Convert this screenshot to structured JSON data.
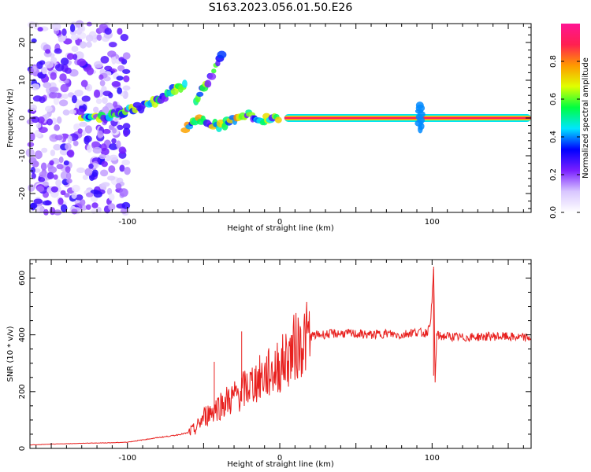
{
  "title": "S163.2023.056.01.50.E26",
  "chart_data": [
    {
      "type": "heatmap",
      "xlabel": "Height of straight line (km)",
      "ylabel": "Frequency (Hz)",
      "xlim": [
        -164,
        165
      ],
      "ylim": [
        -25,
        25
      ],
      "x_ticks": [
        -100,
        0,
        100
      ],
      "y_ticks": [
        -20,
        -10,
        0,
        10,
        20
      ],
      "colorbar": {
        "label": "Normalized spectral amplitude",
        "range": [
          0,
          1
        ],
        "ticks": [
          0.0,
          0.2,
          0.4,
          0.6,
          0.8
        ],
        "colormap": [
          "#ffffff",
          "#d8c6ff",
          "#7a1fff",
          "#0000ff",
          "#00e5ff",
          "#00ff40",
          "#e0ff00",
          "#ff9900",
          "#ff2050",
          "#ff1493"
        ]
      },
      "features": [
        {
          "name": "noise",
          "x_range": [
            -164,
            -100
          ],
          "f_range": [
            -25,
            25
          ],
          "amplitude": 0.25
        },
        {
          "name": "rising_branch",
          "x": [
            -130,
            -110,
            -95,
            -80,
            -70,
            -62
          ],
          "f": [
            0,
            0.5,
            2.5,
            4.5,
            7.5,
            9
          ],
          "amplitude": 0.5
        },
        {
          "name": "upper_streak",
          "x": [
            -55,
            -48,
            -40,
            -37
          ],
          "f": [
            5,
            9,
            15,
            19
          ],
          "amplitude": 0.45
        },
        {
          "name": "wobble",
          "x": [
            -62,
            -55,
            -48,
            -40,
            -33,
            -26,
            -20,
            -15,
            -8,
            0
          ],
          "f": [
            -3,
            0,
            -1,
            -2,
            -1,
            0.5,
            1,
            -1,
            0,
            0
          ],
          "amplitude": 0.6
        },
        {
          "name": "carrier",
          "x_range": [
            3,
            165
          ],
          "f": 0,
          "amplitude": 0.9
        },
        {
          "name": "spike",
          "x": 92,
          "f_range": [
            -3,
            4
          ],
          "amplitude": 0.4
        }
      ]
    },
    {
      "type": "line",
      "xlabel": "Height of straight line (km)",
      "ylabel": "SNR (10 * v/v)",
      "xlim": [
        -164,
        165
      ],
      "ylim": [
        0,
        665
      ],
      "x_ticks": [
        -100,
        0,
        100
      ],
      "y_ticks": [
        0,
        200,
        400,
        600
      ],
      "color": "#e8201e",
      "series": [
        {
          "x": [
            -164,
            -150,
            -130,
            -110,
            -100,
            -90,
            -80,
            -70,
            -60,
            -55,
            -50,
            -45,
            -40,
            -35,
            -30,
            -25,
            -20,
            -15,
            -10,
            -5,
            0,
            5,
            10,
            15,
            20,
            25,
            30,
            40,
            50,
            60,
            70,
            80,
            85,
            90,
            95,
            98,
            100,
            101,
            102,
            103,
            105,
            110,
            120,
            130,
            140,
            150,
            160,
            165
          ],
          "y": [
            12,
            15,
            18,
            20,
            22,
            30,
            38,
            45,
            55,
            70,
            110,
            130,
            150,
            165,
            180,
            200,
            220,
            240,
            255,
            270,
            290,
            320,
            355,
            380,
            395,
            400,
            402,
            405,
            403,
            400,
            405,
            398,
            408,
            410,
            405,
            420,
            510,
            640,
            230,
            400,
            395,
            395,
            390,
            393,
            395,
            393,
            390,
            390
          ]
        }
      ],
      "annotations_peaks": [
        {
          "x": -43,
          "y": 305
        },
        {
          "x": -25,
          "y": 412
        },
        {
          "x": 101,
          "y": 640
        }
      ]
    }
  ]
}
